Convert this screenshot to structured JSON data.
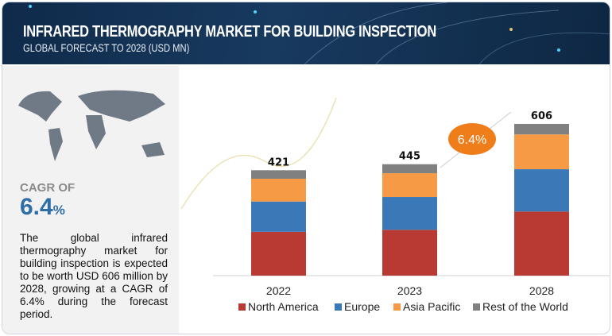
{
  "header": {
    "title": "INFRARED THERMOGRAPHY MARKET FOR BUILDING INSPECTION",
    "subtitle": "GLOBAL FORECAST TO 2028 (USD MN)"
  },
  "summary": {
    "cagr_label": "CAGR OF",
    "cagr_value": "6.4",
    "cagr_unit": "%",
    "description": "The global infrared thermography market for building inspection is expected to be worth USD 606 million by 2028, growing at a CAGR of 6.4% during the forecast period."
  },
  "chart_data": {
    "type": "bar",
    "stacked": true,
    "title": "INFRARED THERMOGRAPHY MARKET FOR BUILDING INSPECTION",
    "categories": [
      "2022",
      "2023",
      "2028"
    ],
    "totals": [
      "421",
      "445",
      "606"
    ],
    "series": [
      {
        "name": "North America",
        "color": "#b83a32",
        "values": [
          175,
          183,
          256
        ]
      },
      {
        "name": "Europe",
        "color": "#3a78b8",
        "values": [
          121,
          131,
          169
        ]
      },
      {
        "name": "Asia Pacific",
        "color": "#f69a45",
        "values": [
          91,
          95,
          139
        ]
      },
      {
        "name": "Rest of the World",
        "color": "#808080",
        "values": [
          34,
          36,
          42
        ]
      }
    ],
    "annotation": "6.4%",
    "ylim": [
      0,
      606
    ],
    "legend": "bottom"
  }
}
